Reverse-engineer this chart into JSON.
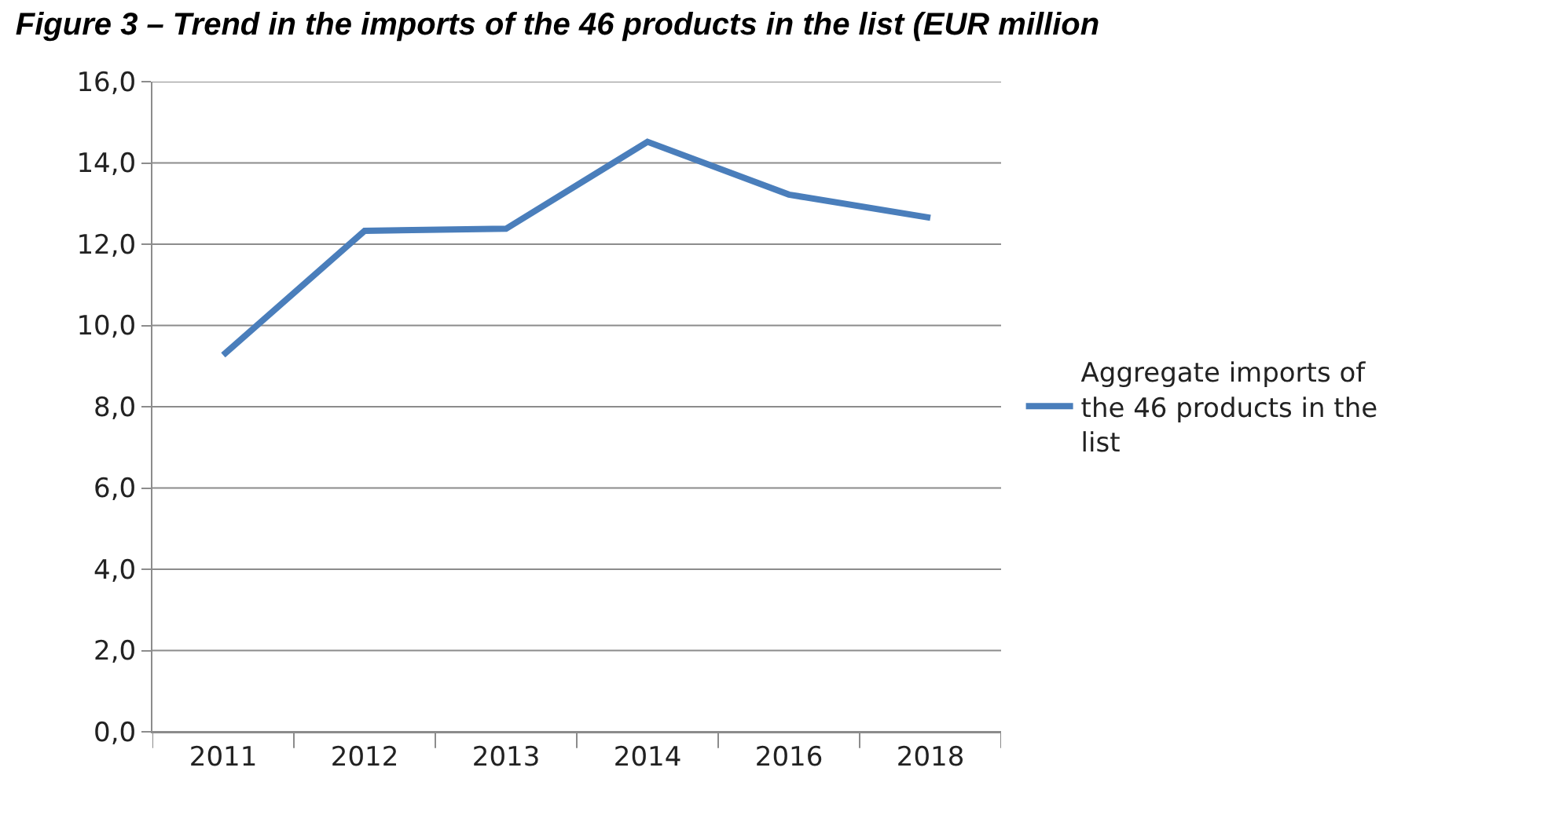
{
  "chart_data": {
    "type": "line",
    "title": "Figure 3 – Trend in the imports of the 46 products in the list (EUR million",
    "categories": [
      "2011",
      "2012",
      "2013",
      "2014",
      "2016",
      "2018"
    ],
    "series": [
      {
        "name": "Aggregate imports of the 46 products in the list",
        "color": "#4a7ebb",
        "values": [
          9.27,
          12.33,
          12.38,
          14.52,
          13.22,
          12.65
        ]
      }
    ],
    "ylim": [
      0,
      16
    ],
    "yticks": [
      {
        "value": 0,
        "label": "0,0"
      },
      {
        "value": 2,
        "label": "2,0"
      },
      {
        "value": 4,
        "label": "4,0"
      },
      {
        "value": 6,
        "label": "6,0"
      },
      {
        "value": 8,
        "label": "8,0"
      },
      {
        "value": 10,
        "label": "10,0"
      },
      {
        "value": 12,
        "label": "12,0"
      },
      {
        "value": 14,
        "label": "14,0"
      },
      {
        "value": 16,
        "label": "16,0"
      }
    ],
    "grid": "y",
    "legend": "right",
    "marker": "none",
    "line_style": "solid"
  }
}
